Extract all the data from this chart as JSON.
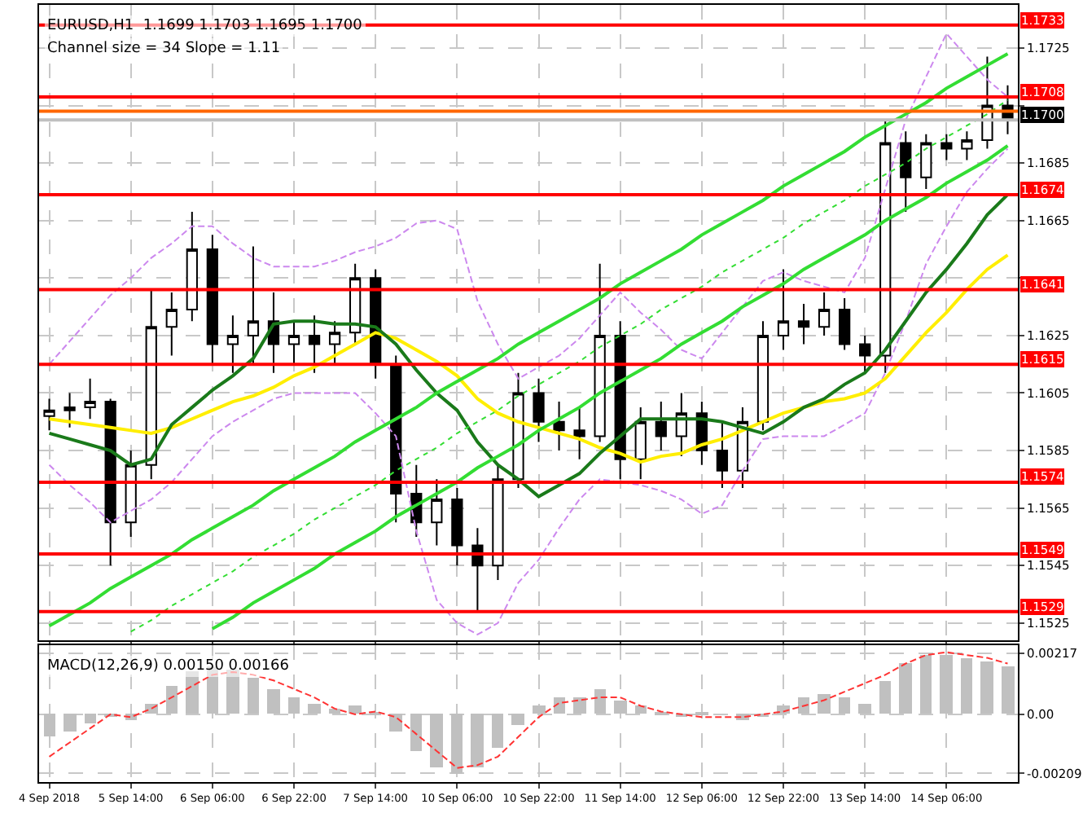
{
  "chart_data": [
    {
      "type": "candlestick",
      "title": "EURUSD,H1  1.1699 1.1703 1.1695 1.1700",
      "subtitle": "Channel size = 34 Slope = 1.11",
      "categories": [
        null,
        null,
        null,
        null,
        null,
        null,
        null,
        null,
        null,
        null,
        null,
        null,
        null,
        null,
        null,
        null,
        null,
        null,
        null,
        null,
        null,
        null,
        null,
        null,
        null,
        null,
        null,
        null,
        null,
        null,
        null,
        null,
        null,
        null,
        null,
        null,
        null,
        null,
        null,
        null,
        null,
        null,
        null,
        null,
        null,
        null,
        null,
        null
      ],
      "ohlc": [
        [
          1.1597,
          1.1603,
          1.1592,
          1.1599
        ],
        [
          1.1599,
          1.1605,
          1.1593,
          1.16
        ],
        [
          1.16,
          1.161,
          1.1596,
          1.1602
        ],
        [
          1.1602,
          1.1603,
          1.1545,
          1.156
        ],
        [
          1.156,
          1.1585,
          1.1555,
          1.158
        ],
        [
          1.158,
          1.1641,
          1.1575,
          1.1628
        ],
        [
          1.1628,
          1.164,
          1.1618,
          1.1634
        ],
        [
          1.1634,
          1.1668,
          1.163,
          1.1655
        ],
        [
          1.1655,
          1.166,
          1.1615,
          1.1622
        ],
        [
          1.1622,
          1.1632,
          1.1612,
          1.1625
        ],
        [
          1.1625,
          1.1656,
          1.1615,
          1.163
        ],
        [
          1.163,
          1.164,
          1.1612,
          1.1622
        ],
        [
          1.1622,
          1.163,
          1.1615,
          1.1625
        ],
        [
          1.1625,
          1.1632,
          1.1612,
          1.1622
        ],
        [
          1.1622,
          1.163,
          1.1615,
          1.1626
        ],
        [
          1.1626,
          1.165,
          1.1622,
          1.1645
        ],
        [
          1.1645,
          1.1648,
          1.161,
          1.1615
        ],
        [
          1.1615,
          1.1618,
          1.156,
          1.157
        ],
        [
          1.157,
          1.158,
          1.1555,
          1.156
        ],
        [
          1.156,
          1.1575,
          1.1552,
          1.1568
        ],
        [
          1.1568,
          1.1572,
          1.1545,
          1.1552
        ],
        [
          1.1552,
          1.1558,
          1.1529,
          1.1545
        ],
        [
          1.1545,
          1.158,
          1.154,
          1.1575
        ],
        [
          1.1575,
          1.1612,
          1.1572,
          1.1605
        ],
        [
          1.1605,
          1.161,
          1.1588,
          1.1595
        ],
        [
          1.1595,
          1.1602,
          1.1585,
          1.1592
        ],
        [
          1.1592,
          1.16,
          1.1582,
          1.159
        ],
        [
          1.159,
          1.165,
          1.1588,
          1.1625
        ],
        [
          1.1625,
          1.163,
          1.1575,
          1.1582
        ],
        [
          1.1582,
          1.16,
          1.1575,
          1.1595
        ],
        [
          1.1595,
          1.1602,
          1.1585,
          1.159
        ],
        [
          1.159,
          1.1605,
          1.1583,
          1.1598
        ],
        [
          1.1598,
          1.1602,
          1.158,
          1.1585
        ],
        [
          1.1585,
          1.1595,
          1.1572,
          1.1578
        ],
        [
          1.1578,
          1.16,
          1.1572,
          1.1595
        ],
        [
          1.1595,
          1.163,
          1.1592,
          1.1625
        ],
        [
          1.1625,
          1.1648,
          1.162,
          1.163
        ],
        [
          1.163,
          1.1636,
          1.1622,
          1.1628
        ],
        [
          1.1628,
          1.164,
          1.1625,
          1.1634
        ],
        [
          1.1634,
          1.1638,
          1.162,
          1.1622
        ],
        [
          1.1622,
          1.1625,
          1.1612,
          1.1618
        ],
        [
          1.1618,
          1.17,
          1.1612,
          1.1692
        ],
        [
          1.1692,
          1.1696,
          1.1668,
          1.168
        ],
        [
          1.168,
          1.1695,
          1.1676,
          1.1692
        ],
        [
          1.1692,
          1.1695,
          1.1686,
          1.169
        ],
        [
          1.169,
          1.1696,
          1.1686,
          1.1693
        ],
        [
          1.1693,
          1.1722,
          1.169,
          1.1705
        ],
        [
          1.1705,
          1.1712,
          1.1695,
          1.17
        ]
      ],
      "series": [
        {
          "type": "line",
          "color": "#cc88ee",
          "line_style": "dashed",
          "values": [
            1.1615,
            1.1623,
            1.1631,
            1.1639,
            1.1645,
            1.1652,
            1.1657,
            1.1663,
            1.1663,
            1.1657,
            1.1652,
            1.1649,
            1.1649,
            1.1649,
            1.1651,
            1.1654,
            1.1656,
            1.1659,
            1.1664,
            1.1665,
            1.1662,
            1.1637,
            1.1622,
            1.161,
            1.1614,
            1.1618,
            1.1624,
            1.1632,
            1.164,
            1.1633,
            1.1627,
            1.162,
            1.1617,
            1.1626,
            1.1635,
            1.1644,
            1.1647,
            1.1644,
            1.1642,
            1.164,
            1.1652,
            1.1676,
            1.17,
            1.1715,
            1.173,
            1.1722,
            1.1714,
            1.1708
          ]
        },
        {
          "type": "line",
          "color": "#cc88ee",
          "line_style": "dashed",
          "values": [
            1.158,
            1.1573,
            1.1567,
            1.156,
            1.1564,
            1.1568,
            1.1574,
            1.1582,
            1.159,
            1.1595,
            1.1599,
            1.1603,
            1.1605,
            1.1605,
            1.1605,
            1.1605,
            1.1598,
            1.159,
            1.1557,
            1.1533,
            1.1525,
            1.1521,
            1.1525,
            1.1539,
            1.1547,
            1.1558,
            1.1568,
            1.1575,
            1.1574,
            1.1573,
            1.1571,
            1.1568,
            1.1563,
            1.1566,
            1.1578,
            1.1589,
            1.159,
            1.159,
            1.159,
            1.1594,
            1.1598,
            1.1612,
            1.163,
            1.165,
            1.1663,
            1.1675,
            1.1683,
            1.169
          ]
        },
        {
          "type": "line",
          "color": "#ffee00",
          "line_style": "solid",
          "values": [
            1.1596,
            1.1595,
            1.1594,
            1.1593,
            1.1592,
            1.1591,
            1.1593,
            1.1596,
            1.1599,
            1.1602,
            1.1604,
            1.1607,
            1.1611,
            1.1614,
            1.1618,
            1.1622,
            1.1626,
            1.1624,
            1.162,
            1.1616,
            1.1611,
            1.1603,
            1.1598,
            1.1595,
            1.1593,
            1.1591,
            1.1589,
            1.1586,
            1.1584,
            1.1581,
            1.1583,
            1.1584,
            1.1587,
            1.1589,
            1.1592,
            1.1595,
            1.1598,
            1.16,
            1.1602,
            1.1603,
            1.1605,
            1.161,
            1.1618,
            1.1626,
            1.1633,
            1.1641,
            1.1648,
            1.1653
          ]
        },
        {
          "type": "line",
          "color": "#1a7a1a",
          "line_style": "solid",
          "values": [
            1.1591,
            1.1589,
            1.1587,
            1.1585,
            1.158,
            1.1582,
            1.1594,
            1.16,
            1.1606,
            1.1611,
            1.1617,
            1.1629,
            1.163,
            1.163,
            1.1629,
            1.1629,
            1.1628,
            1.1622,
            1.1613,
            1.1605,
            1.1599,
            1.1588,
            1.158,
            1.1575,
            1.1569,
            1.1573,
            1.1577,
            1.1584,
            1.159,
            1.1596,
            1.1596,
            1.1596,
            1.1596,
            1.1595,
            1.1593,
            1.1591,
            1.1595,
            1.16,
            1.1603,
            1.1608,
            1.1612,
            1.162,
            1.163,
            1.164,
            1.1648,
            1.1657,
            1.1667,
            1.1674
          ]
        },
        {
          "type": "line",
          "color": "#33dd33",
          "line_style": "solid",
          "values": [
            1.1524,
            1.1528,
            1.1532,
            1.1537,
            1.1541,
            1.1545,
            1.1549,
            1.1554,
            1.1558,
            1.1562,
            1.1566,
            1.1571,
            1.1575,
            1.1579,
            1.1583,
            1.1588,
            1.1592,
            1.1596,
            1.16,
            1.1605,
            1.1609,
            1.1613,
            1.1617,
            1.1622,
            1.1626,
            1.163,
            1.1634,
            1.1638,
            1.1643,
            1.1647,
            1.1651,
            1.1655,
            1.166,
            1.1664,
            1.1668,
            1.1672,
            1.1677,
            1.1681,
            1.1685,
            1.1689,
            1.1694,
            1.1698,
            1.1702,
            1.1706,
            1.1711,
            1.1715,
            1.1719,
            1.1723
          ]
        },
        {
          "type": "line",
          "color": "#33dd33",
          "line_style": "dotted",
          "values": [
            null,
            null,
            null,
            null,
            1.1522,
            1.1526,
            1.1531,
            1.1535,
            1.1539,
            1.1543,
            1.1548,
            1.1552,
            1.1556,
            1.1561,
            1.1565,
            1.1569,
            1.1573,
            1.1578,
            1.1582,
            1.1586,
            1.1591,
            1.1595,
            1.1599,
            1.1604,
            1.1608,
            1.1612,
            1.1616,
            1.1621,
            1.1625,
            1.1629,
            1.1634,
            1.1638,
            1.1642,
            1.1647,
            1.1651,
            1.1655,
            1.1659,
            1.1664,
            1.1668,
            1.1672,
            1.1677,
            1.1681,
            1.1685,
            1.169,
            1.1694,
            1.1698,
            1.1702,
            1.1707
          ]
        },
        {
          "type": "line",
          "color": "#33dd33",
          "line_style": "solid",
          "values": [
            null,
            null,
            null,
            null,
            null,
            null,
            null,
            null,
            1.1523,
            1.1527,
            1.1532,
            1.1536,
            1.154,
            1.1544,
            1.1549,
            1.1553,
            1.1557,
            1.1562,
            1.1566,
            1.157,
            1.1574,
            1.1579,
            1.1583,
            1.1587,
            1.1592,
            1.1596,
            1.16,
            1.1605,
            1.1609,
            1.1613,
            1.1617,
            1.1622,
            1.1626,
            1.163,
            1.1635,
            1.1639,
            1.1643,
            1.1648,
            1.1652,
            1.1656,
            1.166,
            1.1665,
            1.1669,
            1.1673,
            1.1678,
            1.1682,
            1.1686,
            1.1691
          ]
        }
      ],
      "ref_lines": [
        {
          "axis": "y",
          "value": 1.1733,
          "label": "1.1733",
          "color": "#ff0000"
        },
        {
          "axis": "y",
          "value": 1.1708,
          "label": "1.1708",
          "color": "#ff0000"
        },
        {
          "axis": "y",
          "value": 1.1703,
          "label": null,
          "color": "#ff6600"
        },
        {
          "axis": "y",
          "value": 1.17,
          "label": "1.1700",
          "color": "#c0c0c0"
        },
        {
          "axis": "y",
          "value": 1.1674,
          "label": "1.1674",
          "color": "#ff0000"
        },
        {
          "axis": "y",
          "value": 1.1641,
          "label": "1.1641",
          "color": "#ff0000"
        },
        {
          "axis": "y",
          "value": 1.1615,
          "label": "1.1615",
          "color": "#ff0000"
        },
        {
          "axis": "y",
          "value": 1.1574,
          "label": "1.1574",
          "color": "#ff0000"
        },
        {
          "axis": "y",
          "value": 1.1549,
          "label": "1.1549",
          "color": "#ff0000"
        },
        {
          "axis": "y",
          "value": 1.1529,
          "label": "1.1529",
          "color": "#ff0000"
        }
      ],
      "ylim": [
        1.1519,
        1.174
      ],
      "yticks": [
        1.1525,
        1.1545,
        1.1565,
        1.1585,
        1.1605,
        1.1625,
        {
          "value": 1.1645,
          "label": null
        },
        1.1665,
        1.1685,
        {
          "value": 1.1705,
          "label": null
        },
        1.1725
      ],
      "grid": true,
      "tick_labels": "y"
    },
    {
      "type": "bar",
      "title": "MACD(12,26,9) 0.00150 0.00166",
      "categories": [
        "4 Sep 2018",
        null,
        null,
        null,
        "5 Sep 14:00",
        null,
        null,
        null,
        "6 Sep 06:00",
        null,
        null,
        null,
        "6 Sep 22:00",
        null,
        null,
        null,
        "7 Sep 14:00",
        null,
        null,
        null,
        "10 Sep 06:00",
        null,
        null,
        null,
        "10 Sep 22:00",
        null,
        null,
        null,
        "11 Sep 14:00",
        null,
        null,
        null,
        "12 Sep 06:00",
        null,
        null,
        null,
        "12 Sep 22:00",
        null,
        null,
        null,
        "13 Sep 14:00",
        null,
        null,
        null,
        "14 Sep 06:00",
        null,
        null,
        null
      ],
      "series": [
        {
          "type": "bar",
          "color": "#c0c0c0",
          "values": [
            -0.0008,
            -0.0006,
            -0.0003,
            -0.0001,
            -0.0002,
            0.0004,
            0.001,
            0.0015,
            0.0017,
            0.0016,
            0.0013,
            0.0009,
            0.0006,
            0.0004,
            0.0002,
            0.0003,
            0.0001,
            -0.0006,
            -0.0013,
            -0.0019,
            -0.0021,
            -0.0019,
            -0.0012,
            -0.0004,
            0.0003,
            0.0006,
            0.0006,
            0.0009,
            0.0005,
            0.0003,
            0.0001,
            -0.0001,
            0.0001,
            0.0,
            -0.0002,
            -0.0001,
            0.0003,
            0.0006,
            0.0007,
            0.0006,
            0.0004,
            0.0012,
            0.0018,
            0.0021,
            0.0021,
            0.002,
            0.0019,
            0.0017
          ]
        },
        {
          "type": "line",
          "color": "#ff3333",
          "line_style": "dashed",
          "values": [
            -0.0015,
            -0.001,
            -0.0005,
            0.0,
            -0.0001,
            0.0002,
            0.0006,
            0.001,
            0.0014,
            0.0015,
            0.0014,
            0.0012,
            0.0009,
            0.0006,
            0.0002,
            0.0,
            0.0001,
            -0.0001,
            -0.0007,
            -0.0013,
            -0.0019,
            -0.0018,
            -0.0015,
            -0.0008,
            -0.0001,
            0.0004,
            0.0005,
            0.0006,
            0.0006,
            0.0003,
            0.0001,
            0.0,
            -0.0001,
            -0.0001,
            -0.0001,
            0.0,
            0.0001,
            0.0003,
            0.0005,
            0.0008,
            0.0011,
            0.0014,
            0.0018,
            0.0021,
            0.0022,
            0.0021,
            0.002,
            0.0018
          ]
        }
      ],
      "ylim": [
        -0.0024,
        0.00245
      ],
      "yticks": [
        0.00217,
        {
          "value": 0,
          "label": "0.00"
        },
        -0.00209
      ],
      "grid": true
    }
  ]
}
